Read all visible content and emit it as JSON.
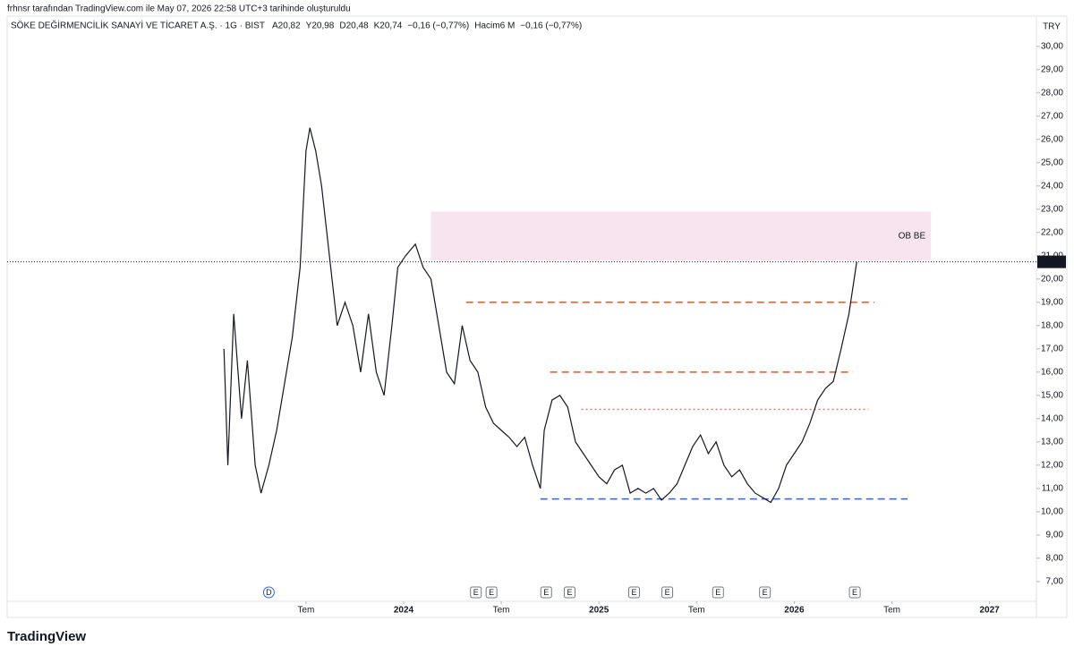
{
  "chart_data": {
    "type": "line",
    "credit": "frhnsr tarafından TradingView.com ile May 07, 2026 22:58 UTC+3 tarihinde oluşturuldu",
    "symbol": "SÖKE DEĞİRMENCİLİK SANAYİ VE TİCARET A.Ş. · 1G · BIST",
    "ohlc": [
      "A20,82",
      "Y20,98",
      "D20,48",
      "K20,74",
      "−0,16 (−0,77%)"
    ],
    "volume_label": "Hacim6 M",
    "volume_change": "−0,16 (−0,77%)",
    "currency": "TRY",
    "brand": "TradingView",
    "x": [
      2023.08,
      2023.1,
      2023.13,
      2023.17,
      2023.2,
      2023.24,
      2023.27,
      2023.31,
      2023.35,
      2023.39,
      2023.43,
      2023.47,
      2023.5,
      2023.52,
      2023.55,
      2023.58,
      2023.62,
      2023.66,
      2023.7,
      2023.74,
      2023.78,
      2023.82,
      2023.86,
      2023.9,
      2023.94,
      2023.97,
      2024.01,
      2024.06,
      2024.1,
      2024.14,
      2024.18,
      2024.22,
      2024.26,
      2024.3,
      2024.34,
      2024.38,
      2024.42,
      2024.46,
      2024.5,
      2024.54,
      2024.58,
      2024.62,
      2024.66,
      2024.7,
      2024.72,
      2024.76,
      2024.8,
      2024.84,
      2024.88,
      2024.92,
      2024.96,
      2025.0,
      2025.04,
      2025.08,
      2025.12,
      2025.16,
      2025.2,
      2025.24,
      2025.28,
      2025.32,
      2025.36,
      2025.4,
      2025.44,
      2025.48,
      2025.52,
      2025.56,
      2025.6,
      2025.64,
      2025.68,
      2025.72,
      2025.76,
      2025.8,
      2025.84,
      2025.88,
      2025.92,
      2025.96,
      2026.0,
      2026.04,
      2026.08,
      2026.12,
      2026.16,
      2026.2,
      2026.24,
      2026.28,
      2026.32
    ],
    "series": [
      {
        "name": "SÖKE",
        "color": "#131722",
        "values": [
          17.0,
          12.0,
          18.5,
          14.0,
          16.5,
          12.0,
          10.8,
          12.0,
          13.5,
          15.5,
          17.5,
          20.5,
          25.5,
          26.5,
          25.5,
          24.0,
          21.0,
          18.0,
          19.0,
          18.0,
          16.0,
          18.5,
          16.0,
          15.0,
          18.0,
          20.5,
          21.0,
          21.5,
          20.5,
          20.0,
          18.0,
          16.0,
          15.5,
          18.0,
          16.5,
          16.0,
          14.5,
          13.8,
          13.5,
          13.2,
          12.8,
          13.2,
          12.0,
          11.0,
          13.5,
          14.8,
          15.0,
          14.5,
          13.0,
          12.5,
          12.0,
          11.5,
          11.2,
          11.8,
          12.0,
          10.8,
          11.0,
          10.8,
          11.0,
          10.5,
          10.8,
          11.2,
          12.0,
          12.8,
          13.3,
          12.5,
          13.0,
          12.0,
          11.5,
          11.8,
          11.2,
          10.8,
          10.6,
          10.4,
          11.0,
          12.0,
          12.5,
          13.0,
          13.8,
          14.8,
          15.3,
          15.6,
          17.0,
          18.5,
          20.74
        ]
      }
    ],
    "xlim": [
      2021.97,
      2027.24
    ],
    "ylim": [
      6.15,
      31.3
    ],
    "xticks": [
      {
        "value": 2023.5,
        "label": "Tem"
      },
      2024,
      {
        "value": 2024.5,
        "label": "Tem"
      },
      2025,
      {
        "value": 2025.5,
        "label": "Tem"
      },
      2026,
      {
        "value": 2026.5,
        "label": "Tem"
      },
      2027
    ],
    "yticks": [
      {
        "value": 7,
        "label": "7,00"
      },
      {
        "value": 8,
        "label": "8,00"
      },
      {
        "value": 9,
        "label": "9,00"
      },
      {
        "value": 10,
        "label": "10,00"
      },
      {
        "value": 11,
        "label": "11,00"
      },
      {
        "value": 12,
        "label": "12,00"
      },
      {
        "value": 13,
        "label": "13,00"
      },
      {
        "value": 14,
        "label": "14,00"
      },
      {
        "value": 15,
        "label": "15,00"
      },
      {
        "value": 16,
        "label": "16,00"
      },
      {
        "value": 17,
        "label": "17,00"
      },
      {
        "value": 18,
        "label": "18,00"
      },
      {
        "value": 19,
        "label": "19,00"
      },
      {
        "value": 20,
        "label": "20,00"
      },
      {
        "value": 21,
        "label": "21,00"
      },
      {
        "value": 22,
        "label": "22,00"
      },
      {
        "value": 23,
        "label": "23,00"
      },
      {
        "value": 24,
        "label": "24,00"
      },
      {
        "value": 25,
        "label": "25,00"
      },
      {
        "value": 26,
        "label": "26,00"
      },
      {
        "value": 27,
        "label": "27,00"
      },
      {
        "value": 28,
        "label": "28,00"
      },
      {
        "value": 29,
        "label": "29,00"
      },
      {
        "value": 30,
        "label": "30,00"
      }
    ],
    "last_price": {
      "value": 20.74,
      "label": "20,74"
    },
    "zone": {
      "label": "OB BE",
      "x": [
        2024.14,
        2026.7
      ],
      "y": [
        20.8,
        22.9
      ],
      "color": "#f8e4ef",
      "label_color": "#9c27b0"
    },
    "levels": [
      {
        "value": 19.0,
        "x": [
          2024.32,
          2026.41
        ],
        "color": "#f4511e",
        "dash": "8,5"
      },
      {
        "value": 16.0,
        "x": [
          2024.75,
          2026.3
        ],
        "color": "#f4511e",
        "dash": "8,5"
      },
      {
        "value": 14.4,
        "x": [
          2024.91,
          2026.38
        ],
        "color": "#e57373",
        "dash": "2,3"
      },
      {
        "value": 10.55,
        "x": [
          2024.7,
          2026.58
        ],
        "color": "#2962ff",
        "dash": "8,5"
      }
    ],
    "events": [
      {
        "x": 2023.31,
        "label": "D"
      },
      {
        "x": 2024.37,
        "label": "E"
      },
      {
        "x": 2024.45,
        "label": "E"
      },
      {
        "x": 2024.73,
        "label": "E"
      },
      {
        "x": 2024.85,
        "label": "E"
      },
      {
        "x": 2025.18,
        "label": "E"
      },
      {
        "x": 2025.35,
        "label": "E"
      },
      {
        "x": 2025.61,
        "label": "E"
      },
      {
        "x": 2025.85,
        "label": "E"
      },
      {
        "x": 2026.31,
        "label": "E"
      }
    ]
  }
}
